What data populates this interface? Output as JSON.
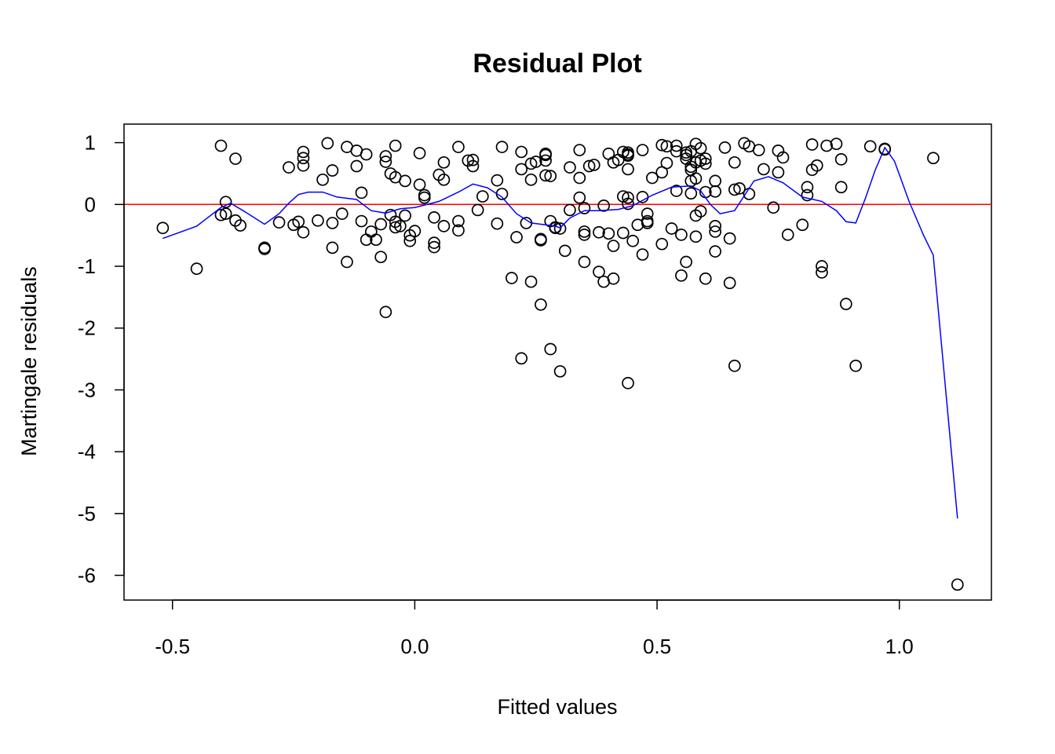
{
  "chart_data": {
    "type": "scatter",
    "title": "Residual Plot",
    "xlabel": "Fitted values",
    "ylabel": "Martingale residuals",
    "xlim": [
      -0.6,
      1.19
    ],
    "ylim": [
      -6.4,
      1.3
    ],
    "xticks": [
      -0.5,
      0.0,
      0.5,
      1.0
    ],
    "xtick_labels": [
      "-0.5",
      "0.0",
      "0.5",
      "1.0"
    ],
    "yticks": [
      1,
      0,
      -1,
      -2,
      -3,
      -4,
      -5,
      -6
    ],
    "ytick_labels": [
      "1",
      "0",
      "-1",
      "-2",
      "-3",
      "-4",
      "-5",
      "-6"
    ],
    "grid": false,
    "reference_line": {
      "y": 0,
      "color": "#ff0000"
    },
    "points_color": "#000000",
    "smooth_color": "#0000ff",
    "points": [
      [
        -0.52,
        -0.38
      ],
      [
        -0.45,
        -1.04
      ],
      [
        -0.4,
        0.95
      ],
      [
        -0.4,
        -0.17
      ],
      [
        -0.39,
        0.04
      ],
      [
        -0.39,
        -0.15
      ],
      [
        -0.37,
        0.74
      ],
      [
        -0.37,
        -0.26
      ],
      [
        -0.36,
        -0.34
      ],
      [
        -0.31,
        -0.72
      ],
      [
        -0.31,
        -0.7
      ],
      [
        -0.28,
        -0.29
      ],
      [
        -0.26,
        0.6
      ],
      [
        -0.25,
        -0.33
      ],
      [
        -0.24,
        -0.28
      ],
      [
        -0.23,
        0.63
      ],
      [
        -0.23,
        0.75
      ],
      [
        -0.23,
        0.85
      ],
      [
        -0.23,
        -0.45
      ],
      [
        -0.2,
        -0.26
      ],
      [
        -0.19,
        0.4
      ],
      [
        -0.18,
        0.99
      ],
      [
        -0.17,
        0.55
      ],
      [
        -0.17,
        -0.3
      ],
      [
        -0.17,
        -0.7
      ],
      [
        -0.15,
        -0.15
      ],
      [
        -0.14,
        0.93
      ],
      [
        -0.14,
        -0.93
      ],
      [
        -0.12,
        0.87
      ],
      [
        -0.12,
        0.62
      ],
      [
        -0.11,
        0.19
      ],
      [
        -0.11,
        -0.27
      ],
      [
        -0.1,
        0.81
      ],
      [
        -0.1,
        -0.57
      ],
      [
        -0.09,
        -0.44
      ],
      [
        -0.08,
        -0.57
      ],
      [
        -0.07,
        -0.32
      ],
      [
        -0.07,
        -0.85
      ],
      [
        -0.06,
        0.69
      ],
      [
        -0.06,
        0.78
      ],
      [
        -0.06,
        -1.74
      ],
      [
        -0.05,
        -0.17
      ],
      [
        -0.05,
        0.5
      ],
      [
        -0.04,
        0.44
      ],
      [
        -0.04,
        0.95
      ],
      [
        -0.04,
        -0.28
      ],
      [
        -0.04,
        -0.37
      ],
      [
        -0.03,
        -0.35
      ],
      [
        -0.02,
        0.38
      ],
      [
        -0.02,
        -0.18
      ],
      [
        -0.01,
        -0.59
      ],
      [
        -0.01,
        -0.5
      ],
      [
        0.0,
        -0.43
      ],
      [
        0.01,
        0.32
      ],
      [
        0.01,
        0.83
      ],
      [
        0.02,
        0.15
      ],
      [
        0.02,
        0.11
      ],
      [
        0.04,
        -0.21
      ],
      [
        0.04,
        -0.62
      ],
      [
        0.04,
        -0.69
      ],
      [
        0.05,
        0.48
      ],
      [
        0.06,
        0.4
      ],
      [
        0.06,
        -0.35
      ],
      [
        0.06,
        0.68
      ],
      [
        0.09,
        0.93
      ],
      [
        0.09,
        -0.27
      ],
      [
        0.09,
        -0.42
      ],
      [
        0.11,
        0.71
      ],
      [
        0.12,
        0.72
      ],
      [
        0.12,
        0.62
      ],
      [
        0.13,
        -0.09
      ],
      [
        0.14,
        0.13
      ],
      [
        0.17,
        0.39
      ],
      [
        0.17,
        -0.31
      ],
      [
        0.18,
        0.17
      ],
      [
        0.18,
        0.93
      ],
      [
        0.2,
        -1.19
      ],
      [
        0.21,
        -0.53
      ],
      [
        0.22,
        0.85
      ],
      [
        0.22,
        -2.49
      ],
      [
        0.22,
        0.57
      ],
      [
        0.23,
        -0.3
      ],
      [
        0.24,
        0.4
      ],
      [
        0.24,
        0.66
      ],
      [
        0.24,
        -1.25
      ],
      [
        0.25,
        0.69
      ],
      [
        0.26,
        -0.56
      ],
      [
        0.26,
        -0.58
      ],
      [
        0.26,
        -1.62
      ],
      [
        0.27,
        0.71
      ],
      [
        0.27,
        0.82
      ],
      [
        0.27,
        0.47
      ],
      [
        0.27,
        0.8
      ],
      [
        0.28,
        -0.27
      ],
      [
        0.28,
        0.46
      ],
      [
        0.28,
        -2.34
      ],
      [
        0.29,
        -0.37
      ],
      [
        0.29,
        -0.38
      ],
      [
        0.3,
        -0.39
      ],
      [
        0.3,
        -2.7
      ],
      [
        0.31,
        -0.75
      ],
      [
        0.32,
        -0.09
      ],
      [
        0.32,
        0.6
      ],
      [
        0.34,
        0.11
      ],
      [
        0.34,
        0.88
      ],
      [
        0.34,
        0.43
      ],
      [
        0.35,
        -0.44
      ],
      [
        0.35,
        -0.49
      ],
      [
        0.35,
        -0.93
      ],
      [
        0.35,
        -0.06
      ],
      [
        0.36,
        0.62
      ],
      [
        0.37,
        0.64
      ],
      [
        0.38,
        -0.45
      ],
      [
        0.38,
        -1.09
      ],
      [
        0.39,
        -0.02
      ],
      [
        0.39,
        -1.25
      ],
      [
        0.4,
        0.82
      ],
      [
        0.4,
        -0.47
      ],
      [
        0.41,
        0.68
      ],
      [
        0.41,
        -0.67
      ],
      [
        0.41,
        -1.2
      ],
      [
        0.42,
        0.72
      ],
      [
        0.43,
        0.85
      ],
      [
        0.43,
        0.13
      ],
      [
        0.43,
        -0.46
      ],
      [
        0.44,
        0.81
      ],
      [
        0.44,
        0.79
      ],
      [
        0.44,
        0.84
      ],
      [
        0.44,
        0.11
      ],
      [
        0.44,
        0.01
      ],
      [
        0.44,
        0.57
      ],
      [
        0.44,
        -2.89
      ],
      [
        0.45,
        -0.59
      ],
      [
        0.46,
        -0.33
      ],
      [
        0.47,
        -0.81
      ],
      [
        0.47,
        0.88
      ],
      [
        0.47,
        0.12
      ],
      [
        0.48,
        -0.15
      ],
      [
        0.48,
        -0.27
      ],
      [
        0.48,
        -0.3
      ],
      [
        0.49,
        0.43
      ],
      [
        0.51,
        0.96
      ],
      [
        0.51,
        0.52
      ],
      [
        0.51,
        -0.64
      ],
      [
        0.52,
        0.94
      ],
      [
        0.52,
        0.67
      ],
      [
        0.53,
        -0.39
      ],
      [
        0.54,
        0.22
      ],
      [
        0.54,
        0.95
      ],
      [
        0.54,
        0.86
      ],
      [
        0.55,
        -1.15
      ],
      [
        0.55,
        -0.49
      ],
      [
        0.56,
        -0.93
      ],
      [
        0.56,
        0.74
      ],
      [
        0.56,
        0.84
      ],
      [
        0.56,
        0.8
      ],
      [
        0.57,
        0.18
      ],
      [
        0.57,
        0.56
      ],
      [
        0.57,
        0.61
      ],
      [
        0.57,
        0.86
      ],
      [
        0.57,
        0.38
      ],
      [
        0.58,
        0.98
      ],
      [
        0.58,
        0.68
      ],
      [
        0.58,
        -0.18
      ],
      [
        0.58,
        0.42
      ],
      [
        0.58,
        -0.52
      ],
      [
        0.59,
        0.91
      ],
      [
        0.59,
        -0.11
      ],
      [
        0.59,
        0.71
      ],
      [
        0.6,
        0.2
      ],
      [
        0.6,
        0.74
      ],
      [
        0.6,
        0.66
      ],
      [
        0.6,
        -1.2
      ],
      [
        0.62,
        0.38
      ],
      [
        0.62,
        -0.35
      ],
      [
        0.62,
        0.21
      ],
      [
        0.62,
        -0.44
      ],
      [
        0.62,
        -0.76
      ],
      [
        0.64,
        0.92
      ],
      [
        0.65,
        -0.55
      ],
      [
        0.65,
        -1.27
      ],
      [
        0.66,
        0.68
      ],
      [
        0.66,
        0.24
      ],
      [
        0.66,
        -2.61
      ],
      [
        0.67,
        0.26
      ],
      [
        0.68,
        0.99
      ],
      [
        0.69,
        0.94
      ],
      [
        0.69,
        0.17
      ],
      [
        0.71,
        0.88
      ],
      [
        0.72,
        0.57
      ],
      [
        0.74,
        -0.05
      ],
      [
        0.75,
        0.52
      ],
      [
        0.75,
        0.87
      ],
      [
        0.76,
        0.76
      ],
      [
        0.77,
        -0.49
      ],
      [
        0.8,
        -0.33
      ],
      [
        0.81,
        0.28
      ],
      [
        0.81,
        0.15
      ],
      [
        0.82,
        0.97
      ],
      [
        0.82,
        0.56
      ],
      [
        0.83,
        0.63
      ],
      [
        0.84,
        -1.0
      ],
      [
        0.84,
        -1.1
      ],
      [
        0.85,
        0.95
      ],
      [
        0.87,
        0.98
      ],
      [
        0.88,
        0.28
      ],
      [
        0.88,
        0.73
      ],
      [
        0.89,
        -1.61
      ],
      [
        0.91,
        -2.61
      ],
      [
        0.94,
        0.94
      ],
      [
        0.97,
        0.89
      ],
      [
        0.97,
        0.9
      ],
      [
        1.07,
        0.75
      ],
      [
        1.12,
        -6.15
      ]
    ],
    "smooth_line": [
      [
        -0.52,
        -0.55
      ],
      [
        -0.45,
        -0.35
      ],
      [
        -0.4,
        -0.05
      ],
      [
        -0.38,
        0.02
      ],
      [
        -0.35,
        -0.12
      ],
      [
        -0.31,
        -0.32
      ],
      [
        -0.28,
        -0.15
      ],
      [
        -0.26,
        0.02
      ],
      [
        -0.24,
        0.16
      ],
      [
        -0.22,
        0.2
      ],
      [
        -0.19,
        0.2
      ],
      [
        -0.16,
        0.12
      ],
      [
        -0.12,
        0.08
      ],
      [
        -0.09,
        -0.1
      ],
      [
        -0.06,
        -0.14
      ],
      [
        -0.03,
        -0.07
      ],
      [
        0.0,
        -0.05
      ],
      [
        0.05,
        0.05
      ],
      [
        0.09,
        0.2
      ],
      [
        0.12,
        0.33
      ],
      [
        0.15,
        0.27
      ],
      [
        0.18,
        0.12
      ],
      [
        0.21,
        -0.15
      ],
      [
        0.24,
        -0.3
      ],
      [
        0.27,
        -0.33
      ],
      [
        0.29,
        -0.35
      ],
      [
        0.3,
        -0.38
      ],
      [
        0.32,
        -0.22
      ],
      [
        0.35,
        -0.1
      ],
      [
        0.38,
        -0.1
      ],
      [
        0.42,
        -0.08
      ],
      [
        0.45,
        -0.02
      ],
      [
        0.49,
        0.15
      ],
      [
        0.53,
        0.28
      ],
      [
        0.57,
        0.3
      ],
      [
        0.59,
        0.22
      ],
      [
        0.61,
        0.0
      ],
      [
        0.63,
        -0.15
      ],
      [
        0.66,
        -0.1
      ],
      [
        0.7,
        0.38
      ],
      [
        0.73,
        0.45
      ],
      [
        0.76,
        0.35
      ],
      [
        0.8,
        0.12
      ],
      [
        0.84,
        0.05
      ],
      [
        0.87,
        -0.1
      ],
      [
        0.89,
        -0.28
      ],
      [
        0.91,
        -0.3
      ],
      [
        0.93,
        0.1
      ],
      [
        0.95,
        0.55
      ],
      [
        0.97,
        0.92
      ],
      [
        0.99,
        0.7
      ],
      [
        1.02,
        0.05
      ],
      [
        1.05,
        -0.5
      ],
      [
        1.07,
        -0.82
      ],
      [
        1.12,
        -5.08
      ]
    ]
  }
}
